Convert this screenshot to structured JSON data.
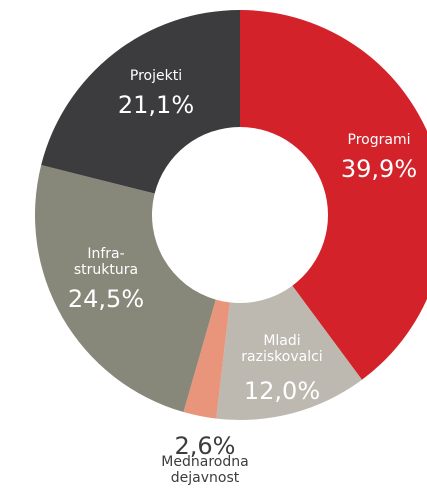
{
  "chart_data": {
    "type": "donut",
    "categories": [
      "Programi",
      "Mladi\nraziskovalci",
      "Mednarodna\ndejavnost",
      "Infra-\nstruktura",
      "Projekti"
    ],
    "values": [
      39.9,
      12.0,
      2.6,
      24.5,
      21.1
    ],
    "value_labels": [
      "39,9%",
      "12,0%",
      "2,6%",
      "24,5%",
      "21,1%"
    ],
    "colors": [
      "#d3222a",
      "#bdb8b0",
      "#e8957b",
      "#87877a",
      "#3c3c3e"
    ]
  }
}
